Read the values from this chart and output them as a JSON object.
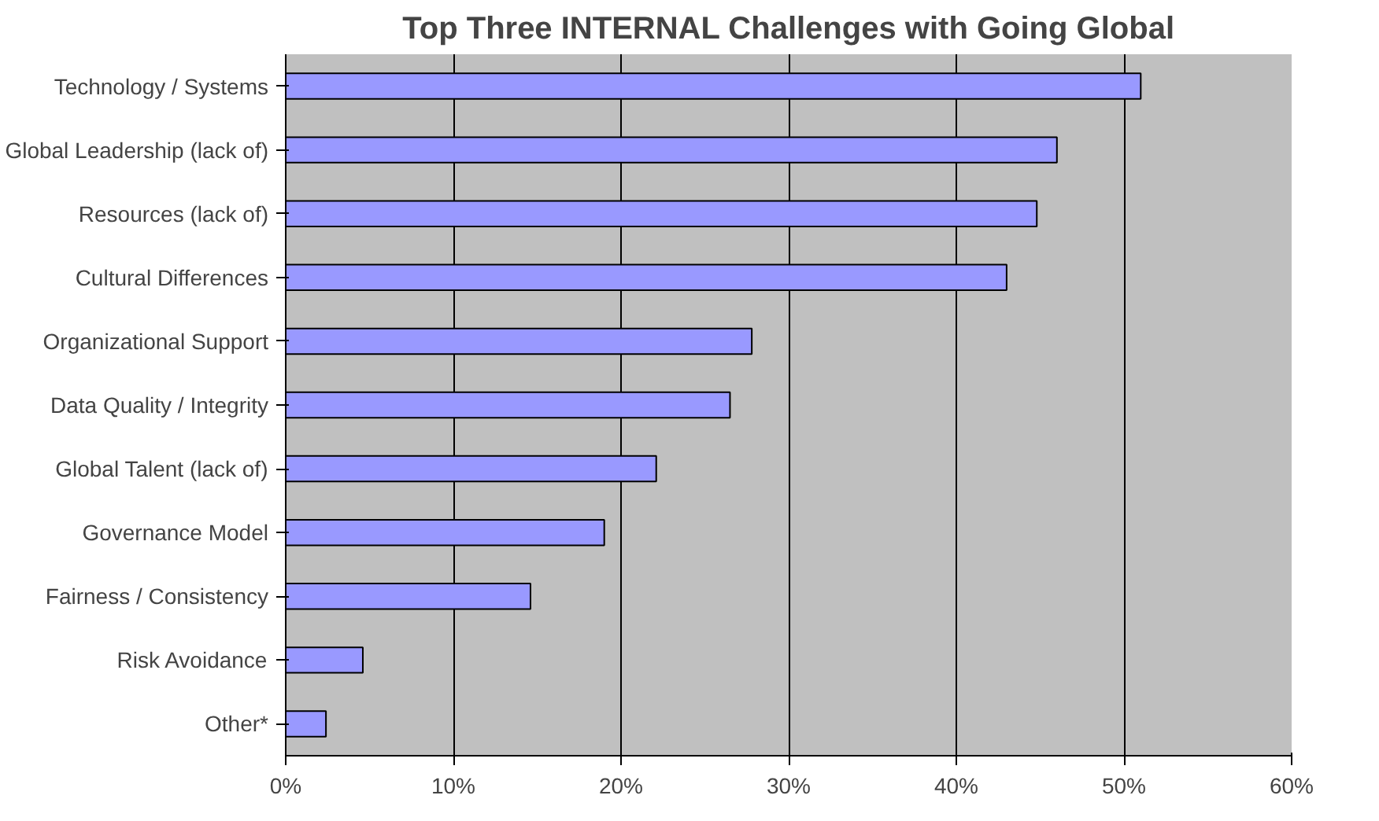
{
  "chart_data": {
    "type": "bar",
    "orientation": "horizontal",
    "title": "Top Three INTERNAL Challenges with Going Global",
    "categories": [
      "Technology / Systems",
      "Global Leadership (lack of)",
      "Resources (lack of)",
      "Cultural Differences",
      "Organizational Support",
      "Data Quality / Integrity",
      "Global Talent (lack of)",
      "Governance Model",
      "Fairness / Consistency",
      "Risk Avoidance",
      "Other*"
    ],
    "values": [
      51,
      46,
      44.8,
      43,
      27.8,
      26.5,
      22.1,
      19,
      14.6,
      4.6,
      2.4
    ],
    "color": "#9999ff",
    "xlim": [
      0,
      60
    ],
    "xticks": [
      {
        "value": 0,
        "label": "0%"
      },
      {
        "value": 10,
        "label": "10%"
      },
      {
        "value": 20,
        "label": "20%"
      },
      {
        "value": 30,
        "label": "30%"
      },
      {
        "value": 40,
        "label": "40%"
      },
      {
        "value": 50,
        "label": "50%"
      },
      {
        "value": 60,
        "label": "60%"
      }
    ],
    "grid": "x"
  }
}
